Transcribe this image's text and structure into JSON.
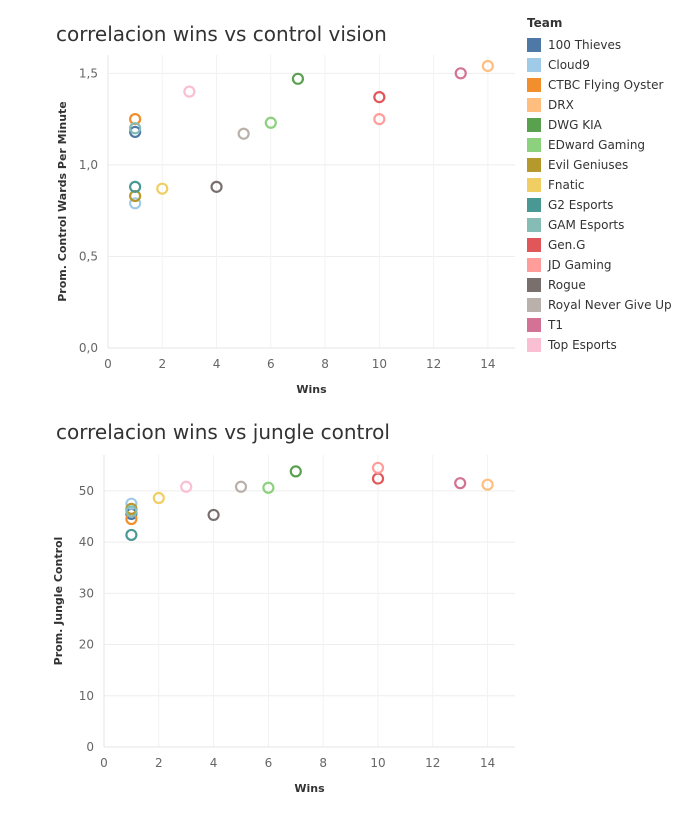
{
  "legend": {
    "title": "Team",
    "items": [
      {
        "name": "100 Thieves",
        "color": "#4e79a7"
      },
      {
        "name": "Cloud9",
        "color": "#a0cbe8"
      },
      {
        "name": "CTBC Flying Oyster",
        "color": "#f28e2b"
      },
      {
        "name": "DRX",
        "color": "#ffbe7d"
      },
      {
        "name": "DWG KIA",
        "color": "#59a14f"
      },
      {
        "name": "EDward Gaming",
        "color": "#8cd17d"
      },
      {
        "name": "Evil Geniuses",
        "color": "#b6992d"
      },
      {
        "name": "Fnatic",
        "color": "#f1ce63"
      },
      {
        "name": "G2 Esports",
        "color": "#499894"
      },
      {
        "name": "GAM Esports",
        "color": "#86bcb6"
      },
      {
        "name": "Gen.G",
        "color": "#e15759"
      },
      {
        "name": "JD Gaming",
        "color": "#ff9d9a"
      },
      {
        "name": "Rogue",
        "color": "#79706e"
      },
      {
        "name": "Royal Never Give Up",
        "color": "#bab0ac"
      },
      {
        "name": "T1",
        "color": "#d37295"
      },
      {
        "name": "Top Esports",
        "color": "#fabfd2"
      }
    ]
  },
  "chart_data": [
    {
      "type": "scatter",
      "title": "correlacion wins vs control vision",
      "xlabel": "Wins",
      "ylabel": "Prom. Control Wards Per Minute",
      "xlim": [
        0,
        15
      ],
      "ylim": [
        0,
        1.6
      ],
      "xticks": [
        "0",
        "2",
        "4",
        "6",
        "8",
        "10",
        "12",
        "14"
      ],
      "xtick_values": [
        0,
        2,
        4,
        6,
        8,
        10,
        12,
        14
      ],
      "yticks": [
        "0,0",
        "0,5",
        "1,0",
        "1,5"
      ],
      "ytick_values": [
        0,
        0.5,
        1.0,
        1.5
      ],
      "grid": true,
      "points": [
        {
          "team": "100 Thieves",
          "x": 1,
          "y": 1.18
        },
        {
          "team": "Cloud9",
          "x": 1,
          "y": 0.79
        },
        {
          "team": "CTBC Flying Oyster",
          "x": 1,
          "y": 1.25
        },
        {
          "team": "DRX",
          "x": 14,
          "y": 1.54
        },
        {
          "team": "DWG KIA",
          "x": 7,
          "y": 1.47
        },
        {
          "team": "EDward Gaming",
          "x": 6,
          "y": 1.23
        },
        {
          "team": "Evil Geniuses",
          "x": 1,
          "y": 0.83
        },
        {
          "team": "Fnatic",
          "x": 2,
          "y": 0.87
        },
        {
          "team": "G2 Esports",
          "x": 1,
          "y": 0.88
        },
        {
          "team": "GAM Esports",
          "x": 1,
          "y": 1.2
        },
        {
          "team": "Gen.G",
          "x": 10,
          "y": 1.37
        },
        {
          "team": "JD Gaming",
          "x": 10,
          "y": 1.25
        },
        {
          "team": "Rogue",
          "x": 4,
          "y": 0.88
        },
        {
          "team": "Royal Never Give Up",
          "x": 5,
          "y": 1.17
        },
        {
          "team": "T1",
          "x": 13,
          "y": 1.5
        },
        {
          "team": "Top Esports",
          "x": 3,
          "y": 1.4
        }
      ]
    },
    {
      "type": "scatter",
      "title": "correlacion wins vs jungle control",
      "xlabel": "Wins",
      "ylabel": "Prom. Jungle Control",
      "xlim": [
        0,
        15
      ],
      "ylim": [
        0,
        57
      ],
      "xticks": [
        "0",
        "2",
        "4",
        "6",
        "8",
        "10",
        "12",
        "14"
      ],
      "xtick_values": [
        0,
        2,
        4,
        6,
        8,
        10,
        12,
        14
      ],
      "yticks": [
        "0",
        "10",
        "20",
        "30",
        "40",
        "50"
      ],
      "ytick_values": [
        0,
        10,
        20,
        30,
        40,
        50
      ],
      "grid": true,
      "points": [
        {
          "team": "100 Thieves",
          "x": 1,
          "y": 45.5
        },
        {
          "team": "Cloud9",
          "x": 1,
          "y": 47.5
        },
        {
          "team": "CTBC Flying Oyster",
          "x": 1,
          "y": 44.5
        },
        {
          "team": "DRX",
          "x": 14,
          "y": 51.2
        },
        {
          "team": "DWG KIA",
          "x": 7,
          "y": 53.8
        },
        {
          "team": "EDward Gaming",
          "x": 6,
          "y": 50.6
        },
        {
          "team": "Evil Geniuses",
          "x": 1,
          "y": 46.5
        },
        {
          "team": "Fnatic",
          "x": 2,
          "y": 48.6
        },
        {
          "team": "G2 Esports",
          "x": 1,
          "y": 41.4
        },
        {
          "team": "GAM Esports",
          "x": 1,
          "y": 46.0
        },
        {
          "team": "Gen.G",
          "x": 10,
          "y": 52.4
        },
        {
          "team": "JD Gaming",
          "x": 10,
          "y": 54.5
        },
        {
          "team": "Rogue",
          "x": 4,
          "y": 45.3
        },
        {
          "team": "Royal Never Give Up",
          "x": 5,
          "y": 50.8
        },
        {
          "team": "T1",
          "x": 13,
          "y": 51.5
        },
        {
          "team": "Top Esports",
          "x": 3,
          "y": 50.8
        }
      ]
    }
  ]
}
